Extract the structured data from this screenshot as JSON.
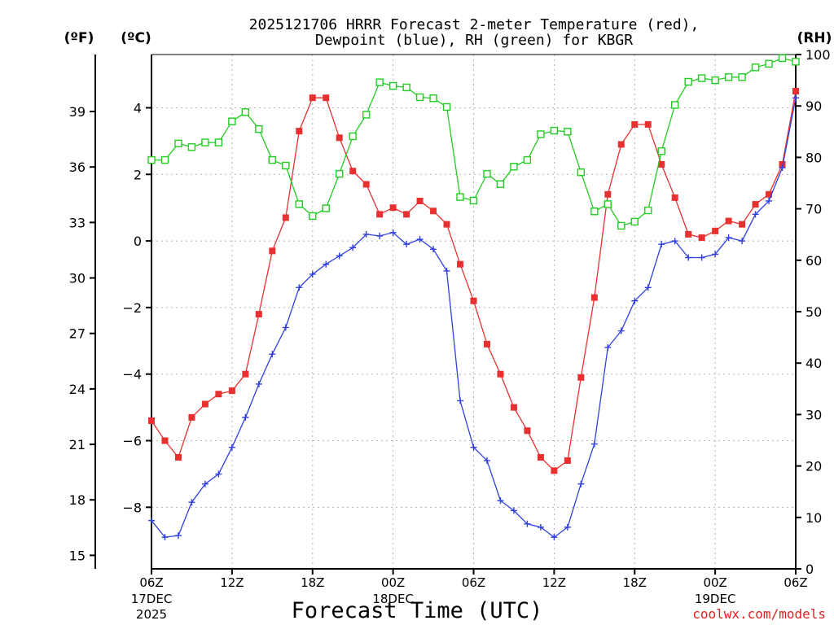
{
  "chart_data": {
    "type": "line",
    "title": "2025121706 HRRR Forecast 2-meter Temperature (red),",
    "subtitle": "Dewpoint (blue), RH (green) for KBGR",
    "xlabel": "Forecast Time (UTC)",
    "unit_f": "(ºF)",
    "unit_c": "(ºC)",
    "unit_rh": "(RH)",
    "credit": "coolwx.com/models",
    "x": [
      0,
      1,
      2,
      3,
      4,
      5,
      6,
      7,
      8,
      9,
      10,
      11,
      12,
      13,
      14,
      15,
      16,
      17,
      18,
      19,
      20,
      21,
      22,
      23,
      24,
      25,
      26,
      27,
      28,
      29,
      30,
      31,
      32,
      33,
      34,
      35,
      36,
      37,
      38,
      39,
      40,
      41,
      42,
      43,
      44,
      45,
      46,
      47,
      48
    ],
    "xlim": [
      0,
      48
    ],
    "ylim_c": [
      -9.85,
      5.6
    ],
    "ylim_rh": [
      0,
      100
    ],
    "xticks": [
      {
        "x": 0,
        "label": "06Z",
        "sub1": "17DEC",
        "sub2": "2025"
      },
      {
        "x": 6,
        "label": "12Z",
        "sub1": "",
        "sub2": ""
      },
      {
        "x": 12,
        "label": "18Z",
        "sub1": "",
        "sub2": ""
      },
      {
        "x": 18,
        "label": "00Z",
        "sub1": "18DEC",
        "sub2": ""
      },
      {
        "x": 24,
        "label": "06Z",
        "sub1": "",
        "sub2": ""
      },
      {
        "x": 30,
        "label": "12Z",
        "sub1": "",
        "sub2": ""
      },
      {
        "x": 36,
        "label": "18Z",
        "sub1": "",
        "sub2": ""
      },
      {
        "x": 42,
        "label": "00Z",
        "sub1": "19DEC",
        "sub2": ""
      },
      {
        "x": 48,
        "label": "06Z",
        "sub1": "",
        "sub2": ""
      }
    ],
    "yticks_c": [
      {
        "v": 4,
        "label": "4"
      },
      {
        "v": 2,
        "label": "2"
      },
      {
        "v": 0,
        "label": "0"
      },
      {
        "v": -2,
        "label": "−2"
      },
      {
        "v": -4,
        "label": "−4"
      },
      {
        "v": -6,
        "label": "−6"
      },
      {
        "v": -8,
        "label": "−8"
      }
    ],
    "yticks_f": [
      {
        "v": 39,
        "label": "39"
      },
      {
        "v": 36,
        "label": "36"
      },
      {
        "v": 33,
        "label": "33"
      },
      {
        "v": 30,
        "label": "30"
      },
      {
        "v": 27,
        "label": "27"
      },
      {
        "v": 24,
        "label": "24"
      },
      {
        "v": 21,
        "label": "21"
      },
      {
        "v": 18,
        "label": "18"
      },
      {
        "v": 15,
        "label": "15"
      }
    ],
    "yticks_rh": [
      {
        "v": 100,
        "label": "100"
      },
      {
        "v": 90,
        "label": "90"
      },
      {
        "v": 80,
        "label": "80"
      },
      {
        "v": 70,
        "label": "70"
      },
      {
        "v": 60,
        "label": "60"
      },
      {
        "v": 50,
        "label": "50"
      },
      {
        "v": 40,
        "label": "40"
      },
      {
        "v": 30,
        "label": "30"
      },
      {
        "v": 20,
        "label": "20"
      },
      {
        "v": 10,
        "label": "10"
      },
      {
        "v": 0,
        "label": "0"
      }
    ],
    "series": [
      {
        "name": "Temperature",
        "color": "#e83030",
        "axis": "c",
        "marker": "filled-square",
        "values": [
          -5.4,
          -6.0,
          -6.5,
          -5.3,
          -4.9,
          -4.6,
          -4.5,
          -4.0,
          -2.2,
          -0.3,
          0.7,
          3.3,
          4.3,
          4.3,
          3.1,
          2.1,
          1.7,
          0.8,
          1.0,
          0.8,
          1.2,
          0.9,
          0.5,
          -0.7,
          -1.8,
          -3.1,
          -4.0,
          -5.0,
          -5.7,
          -6.5,
          -6.9,
          -6.6,
          -4.1,
          -1.7,
          1.4,
          2.9,
          3.5,
          3.5,
          2.3,
          1.3,
          0.2,
          0.1,
          0.3,
          0.6,
          0.5,
          1.1,
          1.4,
          2.3,
          4.5
        ]
      },
      {
        "name": "Dewpoint",
        "color": "#2f3fe0",
        "axis": "c",
        "marker": "plus",
        "values": [
          -8.4,
          -8.9,
          -8.85,
          -7.85,
          -7.3,
          -7.0,
          -6.2,
          -5.3,
          -4.3,
          -3.4,
          -2.6,
          -1.4,
          -1.0,
          -0.7,
          -0.45,
          -0.2,
          0.2,
          0.15,
          0.25,
          -0.1,
          0.05,
          -0.25,
          -0.9,
          -4.8,
          -6.2,
          -6.6,
          -7.8,
          -8.1,
          -8.5,
          -8.6,
          -8.9,
          -8.6,
          -7.3,
          -6.1,
          -3.2,
          -2.7,
          -1.8,
          -1.4,
          -0.1,
          0.0,
          -0.5,
          -0.5,
          -0.4,
          0.1,
          0.0,
          0.8,
          1.2,
          2.2,
          4.3
        ]
      },
      {
        "name": "RH",
        "color": "#22cc22",
        "axis": "rh",
        "marker": "open-square",
        "values": [
          79.5,
          79.5,
          82.7,
          82.0,
          82.9,
          82.9,
          87.0,
          88.8,
          85.5,
          79.5,
          78.4,
          70.9,
          68.6,
          70.1,
          76.8,
          84.1,
          88.3,
          94.6,
          93.9,
          93.6,
          91.7,
          91.5,
          89.8,
          72.3,
          71.6,
          76.8,
          74.8,
          78.2,
          79.5,
          84.5,
          85.2,
          85.0,
          77.1,
          69.5,
          70.9,
          66.7,
          67.5,
          69.7,
          81.2,
          90.2,
          94.7,
          95.4,
          95.0,
          95.6,
          95.6,
          97.5,
          98.2,
          99.3,
          98.6
        ]
      }
    ]
  }
}
